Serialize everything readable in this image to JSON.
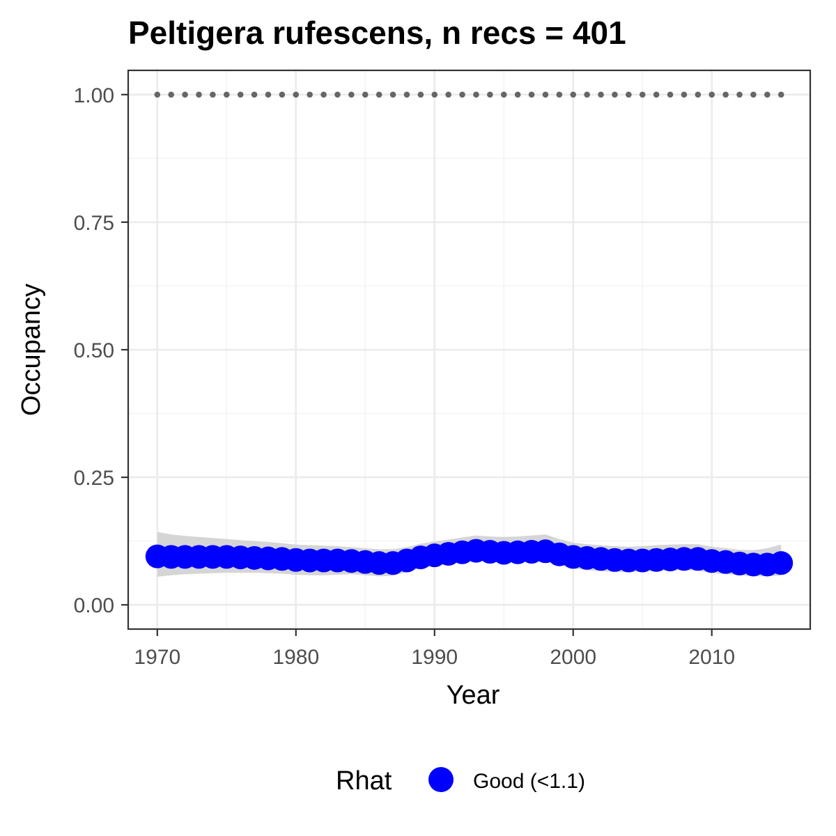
{
  "chart_data": {
    "type": "line",
    "title": "Peltigera rufescens, n recs = 401",
    "xlabel": "Year",
    "ylabel": "Occupancy",
    "xlim": [
      1967.9,
      2017.1
    ],
    "ylim": [
      -0.0475,
      1.0475
    ],
    "x_ticks": [
      1970,
      1980,
      1990,
      2000,
      2010
    ],
    "x_tick_labels": [
      "1970",
      "1980",
      "1990",
      "2000",
      "2010"
    ],
    "y_ticks": [
      0,
      0.25,
      0.5,
      0.75,
      1
    ],
    "y_tick_labels": [
      "0.00",
      "0.25",
      "0.50",
      "0.75",
      "1.00"
    ],
    "grid": true,
    "legend": {
      "position": "bottom",
      "title": "Rhat",
      "entries": [
        {
          "label": "Good (<1.1)",
          "color": "#0000ff"
        }
      ]
    },
    "x": [
      1970,
      1971,
      1972,
      1973,
      1974,
      1975,
      1976,
      1977,
      1978,
      1979,
      1980,
      1981,
      1982,
      1983,
      1984,
      1985,
      1986,
      1987,
      1988,
      1989,
      1990,
      1991,
      1992,
      1993,
      1994,
      1995,
      1996,
      1997,
      1998,
      1999,
      2000,
      2001,
      2002,
      2003,
      2004,
      2005,
      2006,
      2007,
      2008,
      2009,
      2010,
      2011,
      2012,
      2013,
      2014,
      2015
    ],
    "series": [
      {
        "name": "Good (<1.1)",
        "color": "#0000ff",
        "values": [
          0.095,
          0.094,
          0.094,
          0.094,
          0.094,
          0.094,
          0.093,
          0.092,
          0.091,
          0.09,
          0.088,
          0.087,
          0.087,
          0.087,
          0.086,
          0.084,
          0.082,
          0.082,
          0.087,
          0.093,
          0.097,
          0.1,
          0.103,
          0.106,
          0.104,
          0.102,
          0.103,
          0.104,
          0.105,
          0.099,
          0.094,
          0.092,
          0.09,
          0.088,
          0.087,
          0.087,
          0.088,
          0.089,
          0.09,
          0.09,
          0.086,
          0.084,
          0.081,
          0.079,
          0.079,
          0.082
        ],
        "lower": [
          0.055,
          0.058,
          0.06,
          0.061,
          0.062,
          0.063,
          0.063,
          0.063,
          0.062,
          0.061,
          0.059,
          0.058,
          0.058,
          0.059,
          0.06,
          0.058,
          0.056,
          0.057,
          0.064,
          0.072,
          0.077,
          0.081,
          0.084,
          0.087,
          0.086,
          0.084,
          0.085,
          0.085,
          0.086,
          0.078,
          0.071,
          0.068,
          0.066,
          0.064,
          0.064,
          0.065,
          0.066,
          0.067,
          0.068,
          0.067,
          0.062,
          0.06,
          0.058,
          0.056,
          0.056,
          0.057
        ],
        "upper": [
          0.143,
          0.138,
          0.135,
          0.133,
          0.131,
          0.129,
          0.127,
          0.125,
          0.123,
          0.121,
          0.118,
          0.117,
          0.116,
          0.115,
          0.113,
          0.111,
          0.109,
          0.109,
          0.113,
          0.12,
          0.124,
          0.128,
          0.132,
          0.136,
          0.134,
          0.133,
          0.134,
          0.136,
          0.138,
          0.129,
          0.122,
          0.119,
          0.117,
          0.115,
          0.114,
          0.115,
          0.117,
          0.118,
          0.119,
          0.119,
          0.114,
          0.111,
          0.108,
          0.107,
          0.111,
          0.118
        ]
      }
    ],
    "reference": {
      "value": 1.0,
      "color": "#666666",
      "style": "dotted"
    }
  }
}
